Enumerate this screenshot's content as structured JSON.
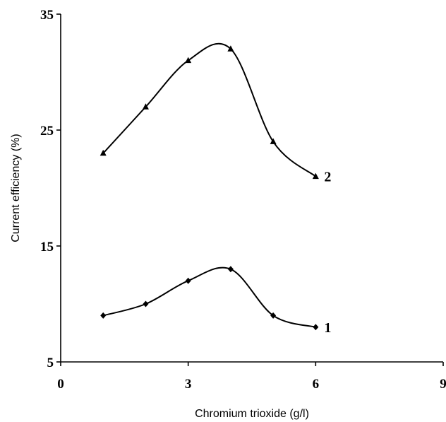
{
  "chart_data": {
    "type": "line",
    "xlabel": "Chromium trioxide (g/l)",
    "ylabel": "Current efficiency (%)",
    "xlim": [
      0,
      9
    ],
    "ylim": [
      5,
      35
    ],
    "xticks": [
      "0",
      "3",
      "6",
      "9"
    ],
    "yticks": [
      "5",
      "15",
      "25",
      "35"
    ],
    "grid": false,
    "series": [
      {
        "name": "1",
        "marker": "diamond",
        "x": [
          1,
          2,
          3,
          4,
          5,
          6
        ],
        "y": [
          9,
          10,
          12,
          13,
          9,
          8
        ]
      },
      {
        "name": "2",
        "marker": "triangle",
        "x": [
          1,
          2,
          3,
          4,
          5,
          6
        ],
        "y": [
          23,
          27,
          31,
          32,
          24,
          21
        ]
      }
    ]
  }
}
